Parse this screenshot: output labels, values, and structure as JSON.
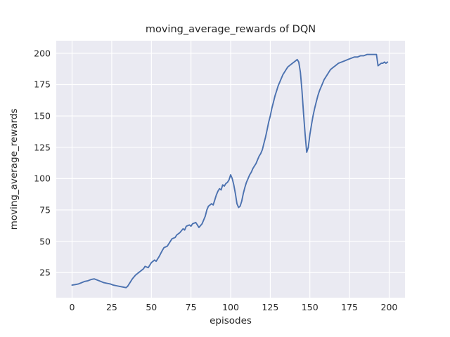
{
  "figure": {
    "title": "moving_average_rewards of DQN",
    "xlabel": "episodes",
    "ylabel": "moving_average_rewards"
  },
  "chart_data": {
    "type": "line",
    "title": "moving_average_rewards of DQN",
    "xlabel": "episodes",
    "ylabel": "moving_average_rewards",
    "xlim": [
      -10,
      210
    ],
    "ylim": [
      5,
      210
    ],
    "xticks": [
      0,
      25,
      50,
      75,
      100,
      125,
      150,
      175,
      200
    ],
    "yticks": [
      25,
      50,
      75,
      100,
      125,
      150,
      175,
      200
    ],
    "grid": true,
    "legend_position": "none",
    "line_color": "#4c72b0",
    "bg_color": "#eaeaf2",
    "grid_color": "#ffffff",
    "points": [
      [
        0,
        15
      ],
      [
        2,
        15.5
      ],
      [
        4,
        16
      ],
      [
        6,
        17
      ],
      [
        8,
        18
      ],
      [
        10,
        18.5
      ],
      [
        12,
        19.5
      ],
      [
        14,
        20
      ],
      [
        16,
        19
      ],
      [
        18,
        18
      ],
      [
        20,
        17
      ],
      [
        22,
        16.5
      ],
      [
        24,
        16
      ],
      [
        26,
        15
      ],
      [
        28,
        14.5
      ],
      [
        30,
        14
      ],
      [
        32,
        13.5
      ],
      [
        34,
        13
      ],
      [
        35,
        14
      ],
      [
        36,
        16
      ],
      [
        38,
        20
      ],
      [
        40,
        23
      ],
      [
        42,
        25
      ],
      [
        43,
        26
      ],
      [
        45,
        28
      ],
      [
        46,
        30
      ],
      [
        48,
        29
      ],
      [
        50,
        33
      ],
      [
        52,
        35
      ],
      [
        53,
        34
      ],
      [
        55,
        38
      ],
      [
        57,
        43
      ],
      [
        58,
        45
      ],
      [
        60,
        46
      ],
      [
        62,
        50
      ],
      [
        63,
        52
      ],
      [
        65,
        53
      ],
      [
        66,
        55
      ],
      [
        68,
        57
      ],
      [
        70,
        60
      ],
      [
        71,
        59
      ],
      [
        72,
        62
      ],
      [
        74,
        63
      ],
      [
        75,
        62
      ],
      [
        76,
        64
      ],
      [
        78,
        65
      ],
      [
        79,
        63
      ],
      [
        80,
        61
      ],
      [
        82,
        64
      ],
      [
        84,
        70
      ],
      [
        85,
        75
      ],
      [
        86,
        78
      ],
      [
        88,
        80
      ],
      [
        89,
        79
      ],
      [
        90,
        83
      ],
      [
        91,
        87
      ],
      [
        92,
        90
      ],
      [
        93,
        92
      ],
      [
        94,
        91
      ],
      [
        95,
        95
      ],
      [
        96,
        94
      ],
      [
        97,
        96
      ],
      [
        98,
        97
      ],
      [
        99,
        99
      ],
      [
        100,
        103
      ],
      [
        101,
        100
      ],
      [
        102,
        95
      ],
      [
        103,
        88
      ],
      [
        104,
        80
      ],
      [
        105,
        77
      ],
      [
        106,
        78
      ],
      [
        107,
        82
      ],
      [
        108,
        88
      ],
      [
        109,
        93
      ],
      [
        110,
        97
      ],
      [
        111,
        100
      ],
      [
        112,
        103
      ],
      [
        113,
        105
      ],
      [
        114,
        108
      ],
      [
        115,
        110
      ],
      [
        116,
        112
      ],
      [
        117,
        115
      ],
      [
        118,
        118
      ],
      [
        119,
        120
      ],
      [
        120,
        123
      ],
      [
        121,
        128
      ],
      [
        122,
        133
      ],
      [
        123,
        139
      ],
      [
        124,
        145
      ],
      [
        125,
        150
      ],
      [
        126,
        156
      ],
      [
        127,
        161
      ],
      [
        128,
        166
      ],
      [
        129,
        170
      ],
      [
        130,
        174
      ],
      [
        131,
        177
      ],
      [
        132,
        180
      ],
      [
        133,
        183
      ],
      [
        134,
        185
      ],
      [
        135,
        187
      ],
      [
        136,
        189
      ],
      [
        137,
        190
      ],
      [
        138,
        191
      ],
      [
        139,
        192
      ],
      [
        140,
        193
      ],
      [
        141,
        194
      ],
      [
        142,
        195
      ],
      [
        143,
        193
      ],
      [
        144,
        185
      ],
      [
        145,
        170
      ],
      [
        146,
        152
      ],
      [
        147,
        135
      ],
      [
        148,
        121
      ],
      [
        149,
        125
      ],
      [
        150,
        135
      ],
      [
        151,
        143
      ],
      [
        152,
        150
      ],
      [
        153,
        156
      ],
      [
        154,
        161
      ],
      [
        155,
        166
      ],
      [
        156,
        170
      ],
      [
        157,
        173
      ],
      [
        158,
        176
      ],
      [
        159,
        179
      ],
      [
        160,
        181
      ],
      [
        161,
        183
      ],
      [
        162,
        185
      ],
      [
        163,
        187
      ],
      [
        164,
        188
      ],
      [
        165,
        189
      ],
      [
        166,
        190
      ],
      [
        167,
        191
      ],
      [
        168,
        192
      ],
      [
        170,
        193
      ],
      [
        172,
        194
      ],
      [
        174,
        195
      ],
      [
        176,
        196
      ],
      [
        178,
        197
      ],
      [
        180,
        197
      ],
      [
        182,
        198
      ],
      [
        184,
        198
      ],
      [
        186,
        199
      ],
      [
        188,
        199
      ],
      [
        190,
        199
      ],
      [
        192,
        199
      ],
      [
        193,
        190
      ],
      [
        194,
        191
      ],
      [
        195,
        192
      ],
      [
        196,
        192
      ],
      [
        197,
        193
      ],
      [
        198,
        192
      ],
      [
        199,
        193
      ]
    ]
  }
}
